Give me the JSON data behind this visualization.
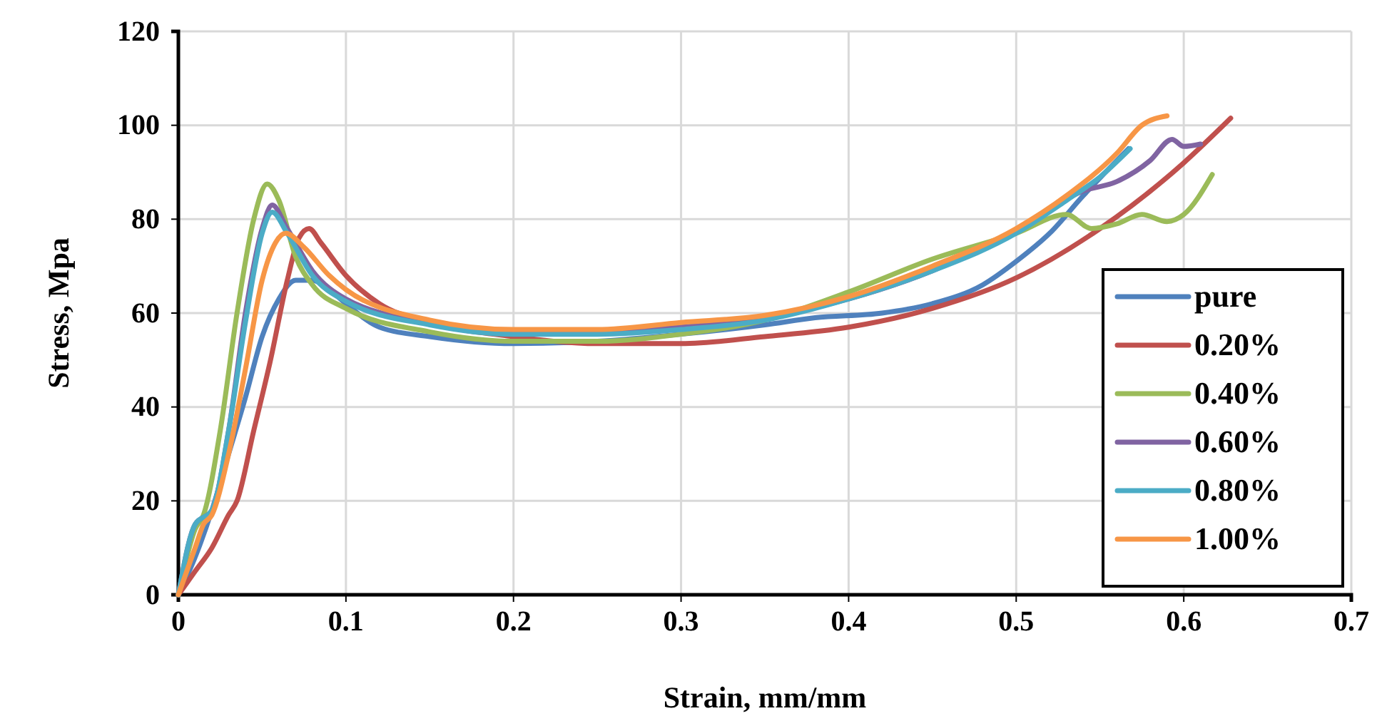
{
  "chart_data": {
    "type": "line",
    "xlabel": "Strain, mm/mm",
    "ylabel": "Stress, Mpa",
    "xlim": [
      0,
      0.7
    ],
    "ylim": [
      0,
      120
    ],
    "xticks": [
      0,
      0.1,
      0.2,
      0.3,
      0.4,
      0.5,
      0.6,
      0.7
    ],
    "yticks": [
      0,
      20,
      40,
      60,
      80,
      100,
      120
    ],
    "grid": true,
    "legend": "bottom right",
    "marker": "none",
    "line_style": "solid",
    "series": [
      {
        "name": "pure",
        "color": "#4f81bd",
        "x": [
          0,
          0.01,
          0.02,
          0.03,
          0.04,
          0.05,
          0.06,
          0.07,
          0.08,
          0.09,
          0.1,
          0.12,
          0.15,
          0.2,
          0.25,
          0.3,
          0.35,
          0.38,
          0.42,
          0.45,
          0.48,
          0.5,
          0.52,
          0.54,
          0.567
        ],
        "values": [
          0,
          8,
          18,
          30,
          42,
          55,
          63,
          67,
          67,
          65,
          62,
          57,
          55,
          53.5,
          54,
          55.5,
          57.5,
          59,
          60,
          62,
          66,
          71,
          77,
          85,
          95
        ]
      },
      {
        "name": "0.20%",
        "color": "#c0504d",
        "x": [
          0,
          0.01,
          0.02,
          0.03,
          0.035,
          0.045,
          0.055,
          0.065,
          0.072,
          0.078,
          0.085,
          0.1,
          0.12,
          0.15,
          0.2,
          0.25,
          0.3,
          0.35,
          0.4,
          0.45,
          0.5,
          0.55,
          0.6,
          0.628
        ],
        "values": [
          0,
          5,
          10,
          17,
          20,
          35,
          50,
          67,
          76,
          78,
          75,
          68,
          62,
          58,
          55,
          53.5,
          53.5,
          55,
          57,
          61,
          67.5,
          78,
          92,
          101.5
        ]
      },
      {
        "name": "0.40%",
        "color": "#9bbb59",
        "x": [
          0,
          0.01,
          0.015,
          0.025,
          0.035,
          0.045,
          0.053,
          0.06,
          0.07,
          0.08,
          0.1,
          0.15,
          0.2,
          0.25,
          0.3,
          0.35,
          0.4,
          0.45,
          0.5,
          0.53,
          0.545,
          0.56,
          0.575,
          0.59,
          0.6,
          0.617
        ],
        "values": [
          0,
          14,
          17,
          35,
          60,
          80,
          87.5,
          84,
          72,
          66,
          61,
          56,
          54,
          54,
          55.5,
          58.5,
          64.5,
          71.5,
          77,
          81,
          78,
          79,
          81,
          79.5,
          81,
          89.5
        ]
      },
      {
        "name": "0.60%",
        "color": "#8064a2",
        "x": [
          0,
          0.01,
          0.02,
          0.03,
          0.04,
          0.05,
          0.056,
          0.065,
          0.08,
          0.1,
          0.15,
          0.2,
          0.25,
          0.3,
          0.35,
          0.4,
          0.45,
          0.5,
          0.54,
          0.56,
          0.58,
          0.593,
          0.6,
          0.61
        ],
        "values": [
          0,
          15,
          18,
          35,
          60,
          78,
          83,
          78,
          69,
          63,
          58,
          56,
          56,
          57,
          59,
          63,
          69,
          77.5,
          86,
          88,
          92.5,
          97,
          95.5,
          96
        ]
      },
      {
        "name": "0.80%",
        "color": "#4bacc6",
        "x": [
          0,
          0.01,
          0.02,
          0.03,
          0.04,
          0.05,
          0.056,
          0.065,
          0.08,
          0.1,
          0.15,
          0.2,
          0.25,
          0.3,
          0.35,
          0.4,
          0.45,
          0.5,
          0.53,
          0.55,
          0.568
        ],
        "values": [
          0,
          15,
          18,
          35,
          58,
          77,
          81.5,
          77,
          68,
          62.5,
          57.5,
          55.5,
          55.5,
          56.5,
          58.5,
          63,
          69,
          77,
          84,
          89,
          95
        ]
      },
      {
        "name": "1.00%",
        "color": "#f79646",
        "x": [
          0,
          0.01,
          0.015,
          0.02,
          0.03,
          0.04,
          0.05,
          0.058,
          0.064,
          0.075,
          0.09,
          0.1,
          0.15,
          0.2,
          0.25,
          0.3,
          0.35,
          0.4,
          0.45,
          0.5,
          0.53,
          0.56,
          0.575,
          0.59
        ],
        "values": [
          0,
          10,
          15,
          17,
          30,
          48,
          67,
          75,
          77,
          74,
          68,
          65,
          58.5,
          56.5,
          56.5,
          58,
          59.5,
          63.5,
          70,
          78,
          85,
          94,
          100,
          102
        ]
      }
    ]
  }
}
